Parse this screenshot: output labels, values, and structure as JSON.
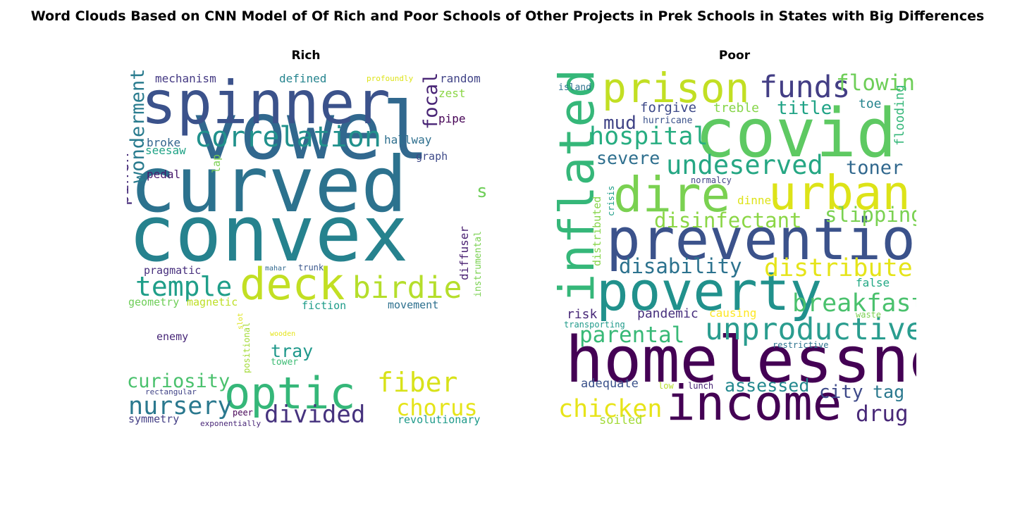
{
  "chart_data": [
    {
      "type": "wordcloud",
      "suptitle": "Word Clouds Based on CNN Model of Of Rich and Poor Schools of Other Projects in Prek Schools in States with Big Differences",
      "title": "Rich",
      "words": [
        {
          "text": "vowel",
          "weight": 100,
          "color": "#31688e",
          "orientation": "horizontal"
        },
        {
          "text": "convex",
          "weight": 98,
          "color": "#26828e",
          "orientation": "horizontal"
        },
        {
          "text": "curved",
          "weight": 97,
          "color": "#2c728e",
          "orientation": "horizontal"
        },
        {
          "text": "spinner",
          "weight": 75,
          "color": "#3b528b",
          "orientation": "horizontal"
        },
        {
          "text": "deck",
          "weight": 55,
          "color": "#c2df23",
          "orientation": "horizontal"
        },
        {
          "text": "optic",
          "weight": 55,
          "color": "#35b779",
          "orientation": "horizontal"
        },
        {
          "text": "birdie",
          "weight": 38,
          "color": "#b5de2b",
          "orientation": "horizontal"
        },
        {
          "text": "correlation",
          "weight": 36,
          "color": "#21918c",
          "orientation": "horizontal"
        },
        {
          "text": "temple",
          "weight": 34,
          "color": "#1f9e89",
          "orientation": "horizontal"
        },
        {
          "text": "fiber",
          "weight": 34,
          "color": "#d8e219",
          "orientation": "horizontal"
        },
        {
          "text": "nursery",
          "weight": 31,
          "color": "#2a788e",
          "orientation": "horizontal"
        },
        {
          "text": "divided",
          "weight": 30,
          "color": "#46327e",
          "orientation": "horizontal"
        },
        {
          "text": "chorus",
          "weight": 29,
          "color": "#e5e419",
          "orientation": "horizontal"
        },
        {
          "text": "curiosity",
          "weight": 24,
          "color": "#4ac16d",
          "orientation": "horizontal"
        },
        {
          "text": "wonderment",
          "weight": 24,
          "color": "#297b8e",
          "orientation": "vertical"
        },
        {
          "text": "focal",
          "weight": 24,
          "color": "#482475",
          "orientation": "vertical"
        },
        {
          "text": "shaped",
          "weight": 23,
          "color": "#6ece58",
          "orientation": "horizontal"
        },
        {
          "text": "pinch",
          "weight": 22,
          "color": "#472c7a",
          "orientation": "vertical"
        },
        {
          "text": "tray",
          "weight": 22,
          "color": "#1f988b",
          "orientation": "horizontal"
        },
        {
          "text": "mechanism",
          "weight": 14,
          "color": "#443983",
          "orientation": "horizontal"
        },
        {
          "text": "defined",
          "weight": 14,
          "color": "#25848e",
          "orientation": "horizontal"
        },
        {
          "text": "profoundly",
          "weight": 10,
          "color": "#dde318",
          "orientation": "horizontal"
        },
        {
          "text": "random",
          "weight": 14,
          "color": "#414487",
          "orientation": "horizontal"
        },
        {
          "text": "zest",
          "weight": 14,
          "color": "#8bd646",
          "orientation": "horizontal"
        },
        {
          "text": "pipe",
          "weight": 14,
          "color": "#440154",
          "orientation": "horizontal"
        },
        {
          "text": "hallway",
          "weight": 14,
          "color": "#2e6f8e",
          "orientation": "horizontal"
        },
        {
          "text": "broke",
          "weight": 14,
          "color": "#32648e",
          "orientation": "horizontal"
        },
        {
          "text": "seesaw",
          "weight": 14,
          "color": "#20a386",
          "orientation": "horizontal"
        },
        {
          "text": "lap",
          "weight": 13,
          "color": "#7ad151",
          "orientation": "vertical"
        },
        {
          "text": "graph",
          "weight": 13,
          "color": "#3e4a89",
          "orientation": "horizontal"
        },
        {
          "text": "pedal",
          "weight": 14,
          "color": "#481a6c",
          "orientation": "horizontal"
        },
        {
          "text": "diffuser",
          "weight": 14,
          "color": "#481f70",
          "orientation": "vertical"
        },
        {
          "text": "instrumental",
          "weight": 12,
          "color": "#7ad151",
          "orientation": "vertical"
        },
        {
          "text": "pragmatic",
          "weight": 13,
          "color": "#472f7d",
          "orientation": "horizontal"
        },
        {
          "text": "mahar",
          "weight": 9,
          "color": "#31688e",
          "orientation": "horizontal"
        },
        {
          "text": "trunk",
          "weight": 11,
          "color": "#39568c",
          "orientation": "horizontal"
        },
        {
          "text": "geometry",
          "weight": 13,
          "color": "#6ece58",
          "orientation": "horizontal"
        },
        {
          "text": "magnetic",
          "weight": 13,
          "color": "#bddf26",
          "orientation": "horizontal"
        },
        {
          "text": "fiction",
          "weight": 13,
          "color": "#1e9c89",
          "orientation": "horizontal"
        },
        {
          "text": "movement",
          "weight": 13,
          "color": "#2d708e",
          "orientation": "horizontal"
        },
        {
          "text": "slot",
          "weight": 9,
          "color": "#dde318",
          "orientation": "vertical"
        },
        {
          "text": "positional",
          "weight": 11,
          "color": "#a2da37",
          "orientation": "vertical"
        },
        {
          "text": "enemy",
          "weight": 13,
          "color": "#482878",
          "orientation": "horizontal"
        },
        {
          "text": "wooden",
          "weight": 9,
          "color": "#e5e419",
          "orientation": "horizontal"
        },
        {
          "text": "tower",
          "weight": 12,
          "color": "#3dbc74",
          "orientation": "horizontal"
        },
        {
          "text": "rectangular",
          "weight": 10,
          "color": "#414487",
          "orientation": "horizontal"
        },
        {
          "text": "peer",
          "weight": 11,
          "color": "#440154",
          "orientation": "horizontal"
        },
        {
          "text": "symmetry",
          "weight": 13,
          "color": "#433e85",
          "orientation": "horizontal"
        },
        {
          "text": "exponentially",
          "weight": 10,
          "color": "#482677",
          "orientation": "horizontal"
        },
        {
          "text": "revolutionary",
          "weight": 13,
          "color": "#1f9a8a",
          "orientation": "horizontal"
        }
      ]
    },
    {
      "type": "wordcloud",
      "title": "Poor",
      "words": [
        {
          "text": "homelessness",
          "weight": 80,
          "color": "#440154",
          "orientation": "horizontal"
        },
        {
          "text": "covid",
          "weight": 85,
          "color": "#5ec962",
          "orientation": "horizontal"
        },
        {
          "text": "prevention",
          "weight": 72,
          "color": "#3b528b",
          "orientation": "horizontal"
        },
        {
          "text": "poverty",
          "weight": 68,
          "color": "#21918c",
          "orientation": "horizontal"
        },
        {
          "text": "income",
          "weight": 62,
          "color": "#440154",
          "orientation": "horizontal"
        },
        {
          "text": "inflated",
          "weight": 62,
          "color": "#35b779",
          "orientation": "vertical"
        },
        {
          "text": "dire",
          "weight": 62,
          "color": "#7ad151",
          "orientation": "horizontal"
        },
        {
          "text": "urban",
          "weight": 60,
          "color": "#dde318",
          "orientation": "horizontal"
        },
        {
          "text": "prison",
          "weight": 52,
          "color": "#c2df23",
          "orientation": "horizontal"
        },
        {
          "text": "unproductive",
          "weight": 38,
          "color": "#2a9d8f",
          "orientation": "horizontal"
        },
        {
          "text": "funds",
          "weight": 38,
          "color": "#433e85",
          "orientation": "horizontal"
        },
        {
          "text": "undeserved",
          "weight": 33,
          "color": "#26a784",
          "orientation": "horizontal"
        },
        {
          "text": "hospital",
          "weight": 31,
          "color": "#27ad81",
          "orientation": "horizontal"
        },
        {
          "text": "distribute",
          "weight": 31,
          "color": "#e5e419",
          "orientation": "horizontal"
        },
        {
          "text": "breakfast",
          "weight": 31,
          "color": "#4ac16d",
          "orientation": "horizontal"
        },
        {
          "text": "flowing",
          "weight": 28,
          "color": "#6ece58",
          "orientation": "horizontal"
        },
        {
          "text": "chicken",
          "weight": 31,
          "color": "#e7e419",
          "orientation": "horizontal"
        },
        {
          "text": "parental",
          "weight": 28,
          "color": "#38b977",
          "orientation": "horizontal"
        },
        {
          "text": "disinfectant",
          "weight": 26,
          "color": "#8bd646",
          "orientation": "horizontal"
        },
        {
          "text": "slipping",
          "weight": 26,
          "color": "#7ad151",
          "orientation": "horizontal"
        },
        {
          "text": "disability",
          "weight": 26,
          "color": "#2c728e",
          "orientation": "horizontal"
        },
        {
          "text": "drug",
          "weight": 28,
          "color": "#482878",
          "orientation": "horizontal"
        },
        {
          "text": "toner",
          "weight": 24,
          "color": "#31688e",
          "orientation": "horizontal"
        },
        {
          "text": "title",
          "weight": 23,
          "color": "#20a386",
          "orientation": "horizontal"
        },
        {
          "text": "mud",
          "weight": 23,
          "color": "#414487",
          "orientation": "horizontal"
        },
        {
          "text": "severe",
          "weight": 22,
          "color": "#2e6f8e",
          "orientation": "horizontal"
        },
        {
          "text": "city",
          "weight": 23,
          "color": "#3e4a89",
          "orientation": "horizontal"
        },
        {
          "text": "assessed",
          "weight": 22,
          "color": "#23888e",
          "orientation": "horizontal"
        },
        {
          "text": "tag",
          "weight": 22,
          "color": "#2a788e",
          "orientation": "horizontal"
        },
        {
          "text": "forgive",
          "weight": 17,
          "color": "#3e4a89",
          "orientation": "horizontal"
        },
        {
          "text": "treble",
          "weight": 16,
          "color": "#86d549",
          "orientation": "horizontal"
        },
        {
          "text": "toe",
          "weight": 16,
          "color": "#25848e",
          "orientation": "horizontal"
        },
        {
          "text": "flooding",
          "weight": 16,
          "color": "#35b779",
          "orientation": "vertical"
        },
        {
          "text": "island",
          "weight": 12,
          "color": "#2c728e",
          "orientation": "horizontal"
        },
        {
          "text": "hurricane",
          "weight": 12,
          "color": "#3b528b",
          "orientation": "horizontal"
        },
        {
          "text": "normalcy",
          "weight": 11,
          "color": "#414487",
          "orientation": "horizontal"
        },
        {
          "text": "dinner",
          "weight": 14,
          "color": "#dde318",
          "orientation": "horizontal"
        },
        {
          "text": "distributed",
          "weight": 13,
          "color": "#86d549",
          "orientation": "vertical"
        },
        {
          "text": "crisis",
          "weight": 11,
          "color": "#1f9e89",
          "orientation": "vertical"
        },
        {
          "text": "false",
          "weight": 14,
          "color": "#22a884",
          "orientation": "horizontal"
        },
        {
          "text": "risk",
          "weight": 16,
          "color": "#482878",
          "orientation": "horizontal"
        },
        {
          "text": "pandemic",
          "weight": 16,
          "color": "#472f7d",
          "orientation": "horizontal"
        },
        {
          "text": "causing",
          "weight": 14,
          "color": "#fde725",
          "orientation": "horizontal"
        },
        {
          "text": "waste",
          "weight": 11,
          "color": "#7ad151",
          "orientation": "horizontal"
        },
        {
          "text": "transporting",
          "weight": 11,
          "color": "#1f9a8a",
          "orientation": "horizontal"
        },
        {
          "text": "restrictive",
          "weight": 11,
          "color": "#2c728e",
          "orientation": "horizontal"
        },
        {
          "text": "adequate",
          "weight": 15,
          "color": "#3b528b",
          "orientation": "horizontal"
        },
        {
          "text": "low",
          "weight": 11,
          "color": "#b5de2b",
          "orientation": "horizontal"
        },
        {
          "text": "lunch",
          "weight": 11,
          "color": "#482475",
          "orientation": "horizontal"
        },
        {
          "text": "soiled",
          "weight": 15,
          "color": "#a2da37",
          "orientation": "horizontal"
        }
      ]
    }
  ]
}
